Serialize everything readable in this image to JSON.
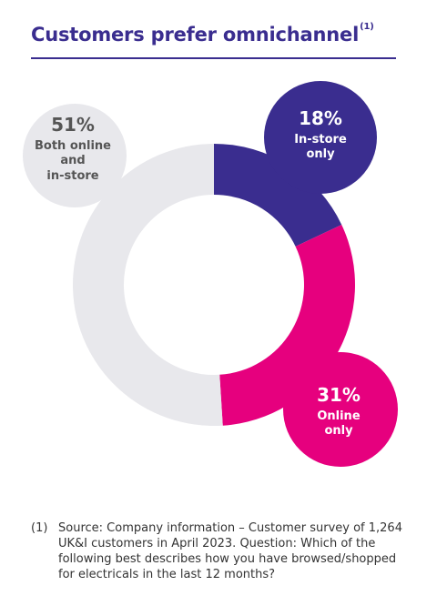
{
  "title": {
    "text": "Customers prefer omnichannel",
    "footnote_ref": "(1)"
  },
  "chart_data": {
    "type": "pie",
    "title": "Customers prefer omnichannel",
    "style": "donut",
    "slices": [
      {
        "label": "In-store only",
        "value": 18,
        "pct_text": "18%",
        "color": "#3a2d8f",
        "label_color": "#ffffff"
      },
      {
        "label": "Online only",
        "value": 31,
        "pct_text": "31%",
        "color": "#e6007e",
        "label_color": "#ffffff"
      },
      {
        "label": "Both online and in-store",
        "value": 51,
        "pct_text": "51%",
        "color": "#e8e8ec",
        "label_color": "#555555"
      }
    ]
  },
  "labels": {
    "both_pct": "51%",
    "both_line1": "Both online",
    "both_line2": "and",
    "both_line3": "in-store",
    "instore_pct": "18%",
    "instore_line1": "In-store",
    "instore_line2": "only",
    "online_pct": "31%",
    "online_line1": "Online",
    "online_line2": "only"
  },
  "footnote": {
    "number": "(1)",
    "text": "Source: Company information – Customer survey of 1,264 UK&I customers in April 2023. Question: Which of the following best describes how you have browsed/shopped for electricals in the last 12 months?"
  }
}
